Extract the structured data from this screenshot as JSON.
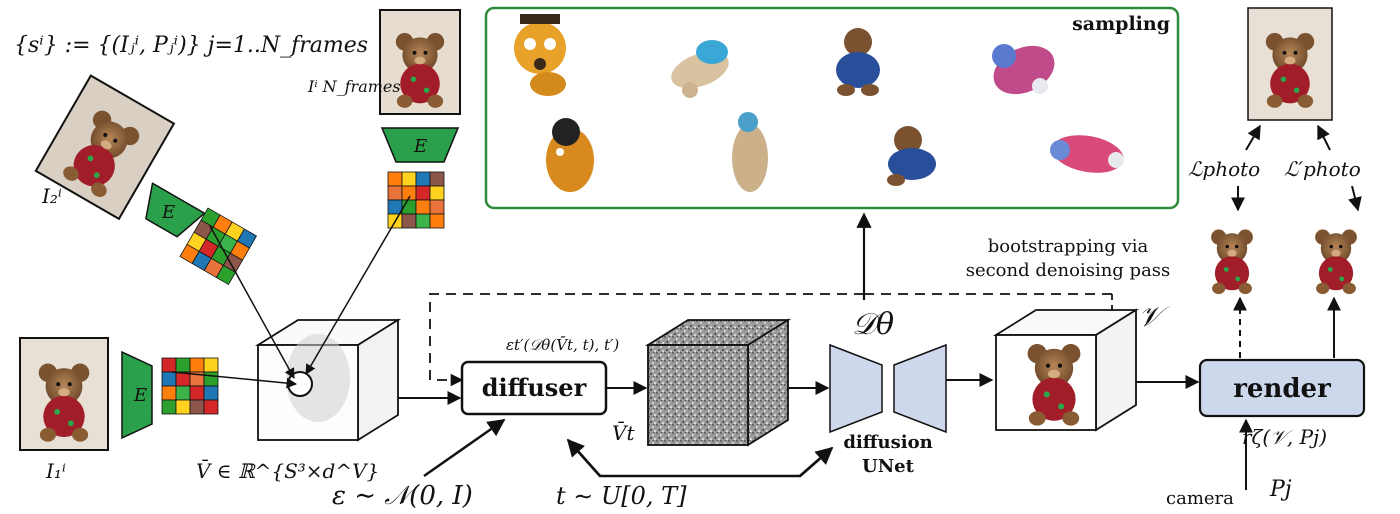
{
  "formulas": {
    "set_definition": "{sⁱ} := {(Iⱼⁱ, Pⱼⁱ)} j=1..N_frames",
    "vbar_space": "V̄ ∈ ℝ^{S³×d^V}",
    "noise": "ε ∼ 𝒩(0, I)",
    "time": "t ∼ U[0, T]",
    "noised_prediction": "εt′(𝒟θ(V̄t, t), t′)",
    "vbar_t": "V̄t",
    "denoiser": "𝒟θ",
    "volume": "𝒱",
    "render_fn": "rζ(𝒱, Pj)",
    "pose": "Pj",
    "loss_photo": "ℒphoto",
    "loss_photo_prime": "ℒ′photo"
  },
  "frame_labels": {
    "first": "I₁ⁱ",
    "second": "I₂ⁱ",
    "last": "Iⁱ N_frames"
  },
  "encoder_label": "E",
  "boxes": {
    "diffuser": "diffuser",
    "render": "render"
  },
  "unet_label_line1": "diffusion",
  "unet_label_line2": "UNet",
  "sampling_title": "sampling",
  "bootstrapping_line1": "bootstrapping via",
  "bootstrapping_line2": "second denoising pass",
  "camera_label": "camera",
  "colors": {
    "encoder_green": "#2ba04a",
    "box_blue": "#cdd8ec",
    "box_border": "#111111",
    "sampling_border": "#2e8b3a",
    "grid_colors": [
      "#d62728",
      "#2ca02c",
      "#ff7f0e",
      "#ffd21f",
      "#1f77b4",
      "#8c564b",
      "#e8743b",
      "#3cb44b"
    ]
  },
  "icons": {
    "teddy_photo": "teddy-bear-photo-icon",
    "encoder": "encoder-trapezoid-icon",
    "feature_grid": "feature-grid-icon",
    "volume_cube": "voxel-cube-icon",
    "unet": "unet-hourglass-icon"
  }
}
